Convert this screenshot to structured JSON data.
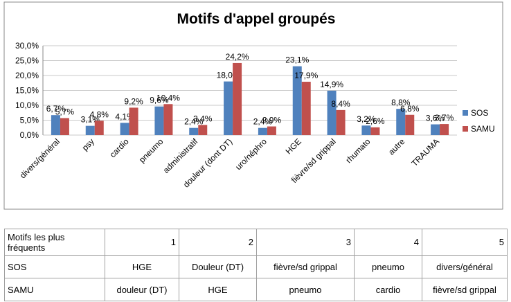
{
  "chart_data": {
    "type": "bar",
    "title": "Motifs d'appel groupés",
    "categories": [
      "divers/général",
      "psy",
      "cardio",
      "pneumo",
      "administratif",
      "douleur (dont DT)",
      "uro/néphro",
      "HGE",
      "fièvre/sd grippal",
      "rhumato",
      "autre",
      "TRAUMA"
    ],
    "series": [
      {
        "name": "SOS",
        "color": "#4f81bd",
        "values": [
          6.7,
          3.1,
          4.1,
          9.6,
          2.4,
          18.0,
          2.4,
          23.1,
          14.9,
          3.2,
          8.8,
          3.6
        ],
        "value_labels": [
          "6,7%",
          "3,1%",
          "4,1%",
          "9,6%",
          "2,4%",
          "18,0%",
          "2,4%",
          "23,1%",
          "14,9%",
          "3,2%",
          "8,8%",
          "3,6%"
        ]
      },
      {
        "name": "SAMU",
        "color": "#c0504d",
        "values": [
          5.7,
          4.8,
          9.2,
          10.4,
          3.4,
          24.2,
          2.9,
          17.9,
          8.4,
          2.6,
          6.8,
          3.7
        ],
        "value_labels": [
          "5,7%",
          "4,8%",
          "9,2%",
          "10,4%",
          "3,4%",
          "24,2%",
          "2,9%",
          "17,9%",
          "8,4%",
          "2,6%",
          "6,8%",
          "3,7%"
        ]
      }
    ],
    "ylim": [
      0,
      30
    ],
    "yticks": [
      {
        "value": 0,
        "label": "0,0%"
      },
      {
        "value": 5,
        "label": "5,0%"
      },
      {
        "value": 10,
        "label": "10,0%"
      },
      {
        "value": 15,
        "label": "15,0%"
      },
      {
        "value": 20,
        "label": "20,0%"
      },
      {
        "value": 25,
        "label": "25,0%"
      },
      {
        "value": 30,
        "label": "30,0%"
      }
    ],
    "grid": true,
    "legend": "right"
  },
  "table": {
    "header": [
      "Motifs les plus fréquents",
      1,
      2,
      3,
      4,
      5
    ],
    "rows": [
      [
        "SOS",
        "HGE",
        "Douleur (DT)",
        "fièvre/sd grippal",
        "pneumo",
        "divers/général"
      ],
      [
        "SAMU",
        "douleur (DT)",
        "HGE",
        "pneumo",
        "cardio",
        "fièvre/sd grippal"
      ]
    ]
  }
}
